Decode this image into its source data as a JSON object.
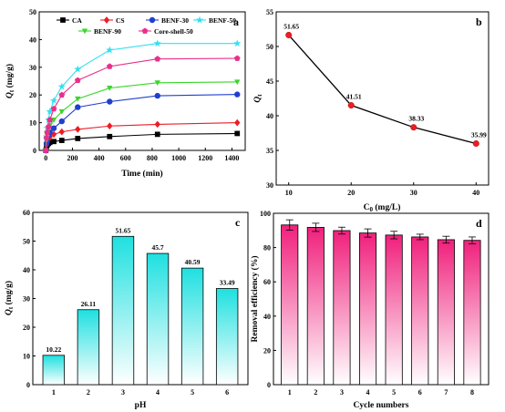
{
  "figure": {
    "panels": [
      "a",
      "b",
      "c",
      "d"
    ]
  },
  "chart_data": [
    {
      "panel": "a",
      "type": "line",
      "xlabel": "Time (min)",
      "ylabel_main": "Q",
      "ylabel_sub": "t",
      "ylabel_unit": " (mg/g)",
      "xlim": [
        -50,
        1500
      ],
      "ylim": [
        0,
        50
      ],
      "xticks": [
        0,
        200,
        400,
        600,
        800,
        1000,
        1200,
        1400
      ],
      "yticks": [
        0,
        10,
        20,
        30,
        40,
        50
      ],
      "legend_placement": "top",
      "x": [
        0,
        5,
        10,
        20,
        30,
        60,
        120,
        240,
        480,
        840,
        1440
      ],
      "series": [
        {
          "name": "CA",
          "marker": "square",
          "color": "#000000",
          "values": [
            0,
            1.2,
            2.0,
            2.5,
            2.9,
            3.2,
            3.6,
            4.3,
            5.0,
            5.8,
            6.1
          ]
        },
        {
          "name": "CS",
          "marker": "diamond",
          "color": "#ee1c25",
          "values": [
            0,
            2.0,
            3.0,
            4.0,
            4.8,
            5.8,
            6.7,
            7.6,
            8.8,
            9.4,
            10.0
          ]
        },
        {
          "name": "BENF-30",
          "marker": "circle",
          "color": "#1f3fd0",
          "values": [
            0,
            2.5,
            4.0,
            5.5,
            6.5,
            8.0,
            10.5,
            15.6,
            17.6,
            19.7,
            20.2
          ]
        },
        {
          "name": "BENF-50",
          "marker": "star",
          "color": "#33e0f0",
          "values": [
            0,
            5.0,
            8.0,
            11.0,
            14.0,
            18.0,
            23.0,
            29.3,
            36.2,
            38.6,
            38.6
          ]
        },
        {
          "name": "BENF-90",
          "marker": "triangle-down",
          "color": "#39d62b",
          "values": [
            0,
            3.5,
            5.5,
            7.5,
            9.0,
            11.0,
            14.0,
            18.6,
            22.5,
            24.4,
            24.7
          ]
        },
        {
          "name": "Core-shell-50",
          "marker": "pentagon",
          "color": "#ea2f8a",
          "values": [
            0,
            4.5,
            6.5,
            8.5,
            11.0,
            15.0,
            20.0,
            25.3,
            30.3,
            33.0,
            33.2
          ]
        }
      ]
    },
    {
      "panel": "b",
      "type": "line",
      "xlabel_main": "C",
      "xlabel_sub": "0",
      "xlabel_unit": " (mg/L)",
      "ylabel_main": "Q",
      "ylabel_sub": "t",
      "xlim": [
        8,
        42
      ],
      "ylim": [
        30,
        55
      ],
      "xticks": [
        10,
        20,
        30,
        40
      ],
      "yticks": [
        30,
        35,
        40,
        45,
        50,
        55
      ],
      "x": [
        10,
        20,
        30,
        40
      ],
      "values": [
        51.65,
        41.51,
        38.33,
        35.99
      ],
      "labels": [
        "51.65",
        "41.51",
        "38.33",
        "35.99"
      ],
      "color": "#ee1c25"
    },
    {
      "panel": "c",
      "type": "bar",
      "xlabel": "pH",
      "ylabel_main": "Q",
      "ylabel_sub": "t",
      "ylabel_unit": " (mg/g)",
      "ylim": [
        0,
        60
      ],
      "yticks": [
        0,
        10,
        20,
        30,
        40,
        50,
        60
      ],
      "categories": [
        "1",
        "2",
        "3",
        "4",
        "5",
        "6"
      ],
      "values": [
        10.22,
        26.11,
        51.65,
        45.7,
        40.59,
        33.49
      ],
      "labels": [
        "10.22",
        "26.11",
        "51.65",
        "45.7",
        "40.59",
        "33.49"
      ],
      "color_top": "#1fe0e0",
      "color_bottom": "#ffffff"
    },
    {
      "panel": "d",
      "type": "bar",
      "xlabel": "Cycle numbers",
      "ylabel": "Removal efficiency (%)",
      "ylim": [
        0,
        100
      ],
      "yticks": [
        0,
        20,
        40,
        60,
        80,
        100
      ],
      "categories": [
        "1",
        "2",
        "3",
        "4",
        "5",
        "6",
        "7",
        "8"
      ],
      "values": [
        93.2,
        91.8,
        89.9,
        88.5,
        87.3,
        86.2,
        84.6,
        84.2
      ],
      "errors": [
        3.0,
        2.4,
        2.0,
        2.4,
        2.2,
        1.6,
        2.0,
        2.0
      ],
      "color_top": "#f0207c",
      "color_bottom": "#ffffff"
    }
  ]
}
